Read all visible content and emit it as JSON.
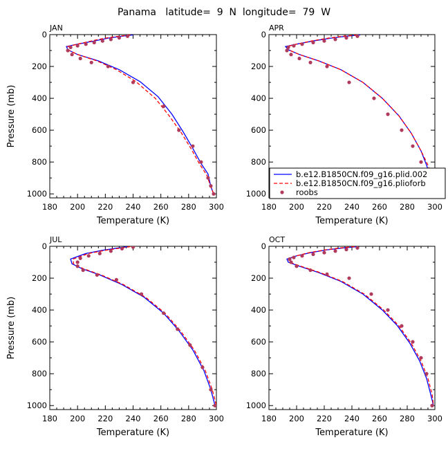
{
  "figure_title": "Panama   latitude=  9  N  longitude=  79  W",
  "legend": {
    "panel": 1,
    "entries": [
      {
        "label": "b.e12.B1850CN.f09_g16.plid.002",
        "color": "#0000ff",
        "style": "solid"
      },
      {
        "label": "b.e12.B1850CN.f09_g16.plioforb",
        "color": "#ff0000",
        "style": "dashed"
      },
      {
        "label": "roobs",
        "color": "#b03a5b",
        "style": "dots"
      }
    ]
  },
  "chart_data": [
    {
      "type": "line",
      "title": "JAN",
      "xlabel": "Temperature (K)",
      "ylabel": "Pressure (mb)",
      "xlim": [
        180,
        300
      ],
      "ylim": [
        1025,
        0
      ],
      "xticks": [
        180,
        200,
        220,
        240,
        260,
        280,
        300
      ],
      "yticks": [
        0,
        200,
        400,
        600,
        800,
        1000
      ],
      "grid": false,
      "series": [
        {
          "name": "b.e12.B1850CN.f09_g16.plid.002",
          "x": [
            240,
            232,
            222,
            212,
            200,
            192,
            193,
            200,
            215,
            230,
            245,
            258,
            268,
            276,
            283,
            289,
            294,
            296,
            298
          ],
          "y": [
            2,
            10,
            22,
            40,
            60,
            75,
            95,
            125,
            165,
            220,
            295,
            390,
            500,
            610,
            715,
            810,
            875,
            955,
            1000
          ]
        },
        {
          "name": "b.e12.B1850CN.f09_g16.plioforb",
          "x": [
            238,
            230,
            220,
            210,
            200,
            193,
            193,
            200,
            214,
            228,
            242,
            256,
            266,
            275,
            282,
            288,
            293,
            296,
            298
          ],
          "y": [
            2,
            10,
            22,
            40,
            60,
            75,
            95,
            125,
            165,
            220,
            295,
            400,
            510,
            620,
            720,
            815,
            880,
            955,
            1000
          ]
        },
        {
          "name": "roobs",
          "x": [
            236,
            230,
            224,
            218,
            212,
            206,
            200,
            195,
            193,
            196,
            202,
            210,
            222,
            240,
            262,
            273,
            283,
            289,
            294,
            296,
            298
          ],
          "y": [
            10,
            20,
            30,
            40,
            50,
            60,
            70,
            80,
            100,
            125,
            150,
            175,
            200,
            300,
            450,
            600,
            700,
            800,
            900,
            950,
            1000
          ]
        }
      ]
    },
    {
      "type": "line",
      "title": "APR",
      "xlabel": "Temperature (K)",
      "ylabel": "",
      "xlim": [
        180,
        300
      ],
      "ylim": [
        1025,
        0
      ],
      "xticks": [
        180,
        200,
        220,
        240,
        260,
        280,
        300
      ],
      "yticks": [
        0,
        200,
        400,
        600,
        800,
        1000
      ],
      "grid": false,
      "series": [
        {
          "name": "b.e12.B1850CN.f09_g16.plid.002",
          "x": [
            246,
            236,
            225,
            212,
            200,
            192,
            194,
            202,
            216,
            232,
            248,
            262,
            274,
            283,
            290,
            294,
            297,
            299,
            300
          ],
          "y": [
            2,
            10,
            22,
            40,
            60,
            75,
            95,
            125,
            165,
            220,
            300,
            400,
            510,
            620,
            730,
            820,
            900,
            960,
            1005
          ]
        },
        {
          "name": "b.e12.B1850CN.f09_g16.plioforb",
          "x": [
            244,
            234,
            223,
            211,
            200,
            193,
            194,
            202,
            216,
            232,
            248,
            262,
            274,
            283,
            290,
            295,
            298,
            299,
            300
          ],
          "y": [
            2,
            10,
            22,
            40,
            60,
            75,
            95,
            125,
            165,
            220,
            300,
            400,
            510,
            620,
            730,
            820,
            900,
            960,
            1005
          ]
        },
        {
          "name": "roobs",
          "x": [
            244,
            236,
            228,
            220,
            212,
            204,
            198,
            194,
            193,
            196,
            202,
            210,
            222,
            238,
            256,
            266,
            276,
            284,
            290,
            296,
            300
          ],
          "y": [
            10,
            20,
            30,
            40,
            50,
            60,
            70,
            80,
            100,
            125,
            150,
            175,
            200,
            300,
            400,
            500,
            600,
            700,
            800,
            900,
            1000
          ]
        }
      ]
    },
    {
      "type": "line",
      "title": "JUL",
      "xlabel": "Temperature (K)",
      "ylabel": "Pressure (mb)",
      "xlim": [
        180,
        300
      ],
      "ylim": [
        1025,
        0
      ],
      "xticks": [
        180,
        200,
        220,
        240,
        260,
        280,
        300
      ],
      "yticks": [
        0,
        200,
        400,
        600,
        800,
        1000
      ],
      "grid": false,
      "series": [
        {
          "name": "b.e12.B1850CN.f09_g16.plid.002",
          "x": [
            236,
            228,
            218,
            206,
            195,
            196,
            203,
            216,
            232,
            248,
            262,
            273,
            283,
            291,
            296,
            299
          ],
          "y": [
            2,
            12,
            25,
            45,
            80,
            110,
            140,
            180,
            240,
            320,
            420,
            530,
            650,
            780,
            900,
            1000
          ]
        },
        {
          "name": "b.e12.B1850CN.f09_g16.plioforb",
          "x": [
            238,
            230,
            220,
            208,
            197,
            197,
            204,
            217,
            233,
            249,
            263,
            274,
            284,
            292,
            297,
            300
          ],
          "y": [
            2,
            12,
            25,
            45,
            80,
            110,
            140,
            180,
            240,
            320,
            420,
            530,
            650,
            780,
            900,
            1000
          ]
        },
        {
          "name": "roobs",
          "x": [
            240,
            232,
            224,
            216,
            208,
            202,
            200,
            200,
            204,
            214,
            228,
            246,
            262,
            272,
            281,
            290,
            296,
            299
          ],
          "y": [
            5,
            15,
            30,
            45,
            60,
            75,
            100,
            125,
            150,
            180,
            210,
            300,
            420,
            520,
            620,
            760,
            900,
            1000
          ]
        }
      ]
    },
    {
      "type": "line",
      "title": "OCT",
      "xlabel": "Temperature (K)",
      "ylabel": "",
      "xlim": [
        180,
        300
      ],
      "ylim": [
        1025,
        0
      ],
      "xticks": [
        180,
        200,
        220,
        240,
        260,
        280,
        300
      ],
      "yticks": [
        0,
        200,
        400,
        600,
        800,
        1000
      ],
      "grid": false,
      "series": [
        {
          "name": "b.e12.B1850CN.f09_g16.plid.002",
          "x": [
            244,
            234,
            222,
            210,
            200,
            193,
            194,
            202,
            216,
            232,
            248,
            262,
            273,
            282,
            289,
            294,
            297,
            299
          ],
          "y": [
            2,
            10,
            22,
            40,
            60,
            80,
            100,
            125,
            165,
            220,
            300,
            400,
            500,
            610,
            720,
            830,
            930,
            1000
          ]
        },
        {
          "name": "b.e12.B1850CN.f09_g16.plioforb",
          "x": [
            242,
            232,
            221,
            209,
            200,
            194,
            195,
            203,
            217,
            233,
            249,
            263,
            274,
            283,
            290,
            295,
            298,
            299
          ],
          "y": [
            2,
            10,
            22,
            40,
            60,
            80,
            100,
            125,
            165,
            220,
            300,
            400,
            500,
            610,
            720,
            830,
            930,
            1000
          ]
        },
        {
          "name": "roobs",
          "x": [
            244,
            236,
            228,
            220,
            212,
            204,
            198,
            195,
            196,
            200,
            210,
            222,
            238,
            254,
            266,
            276,
            284,
            290,
            294,
            298
          ],
          "y": [
            10,
            20,
            30,
            40,
            50,
            60,
            70,
            80,
            100,
            125,
            150,
            175,
            200,
            300,
            400,
            500,
            600,
            700,
            800,
            1000
          ]
        }
      ]
    }
  ]
}
